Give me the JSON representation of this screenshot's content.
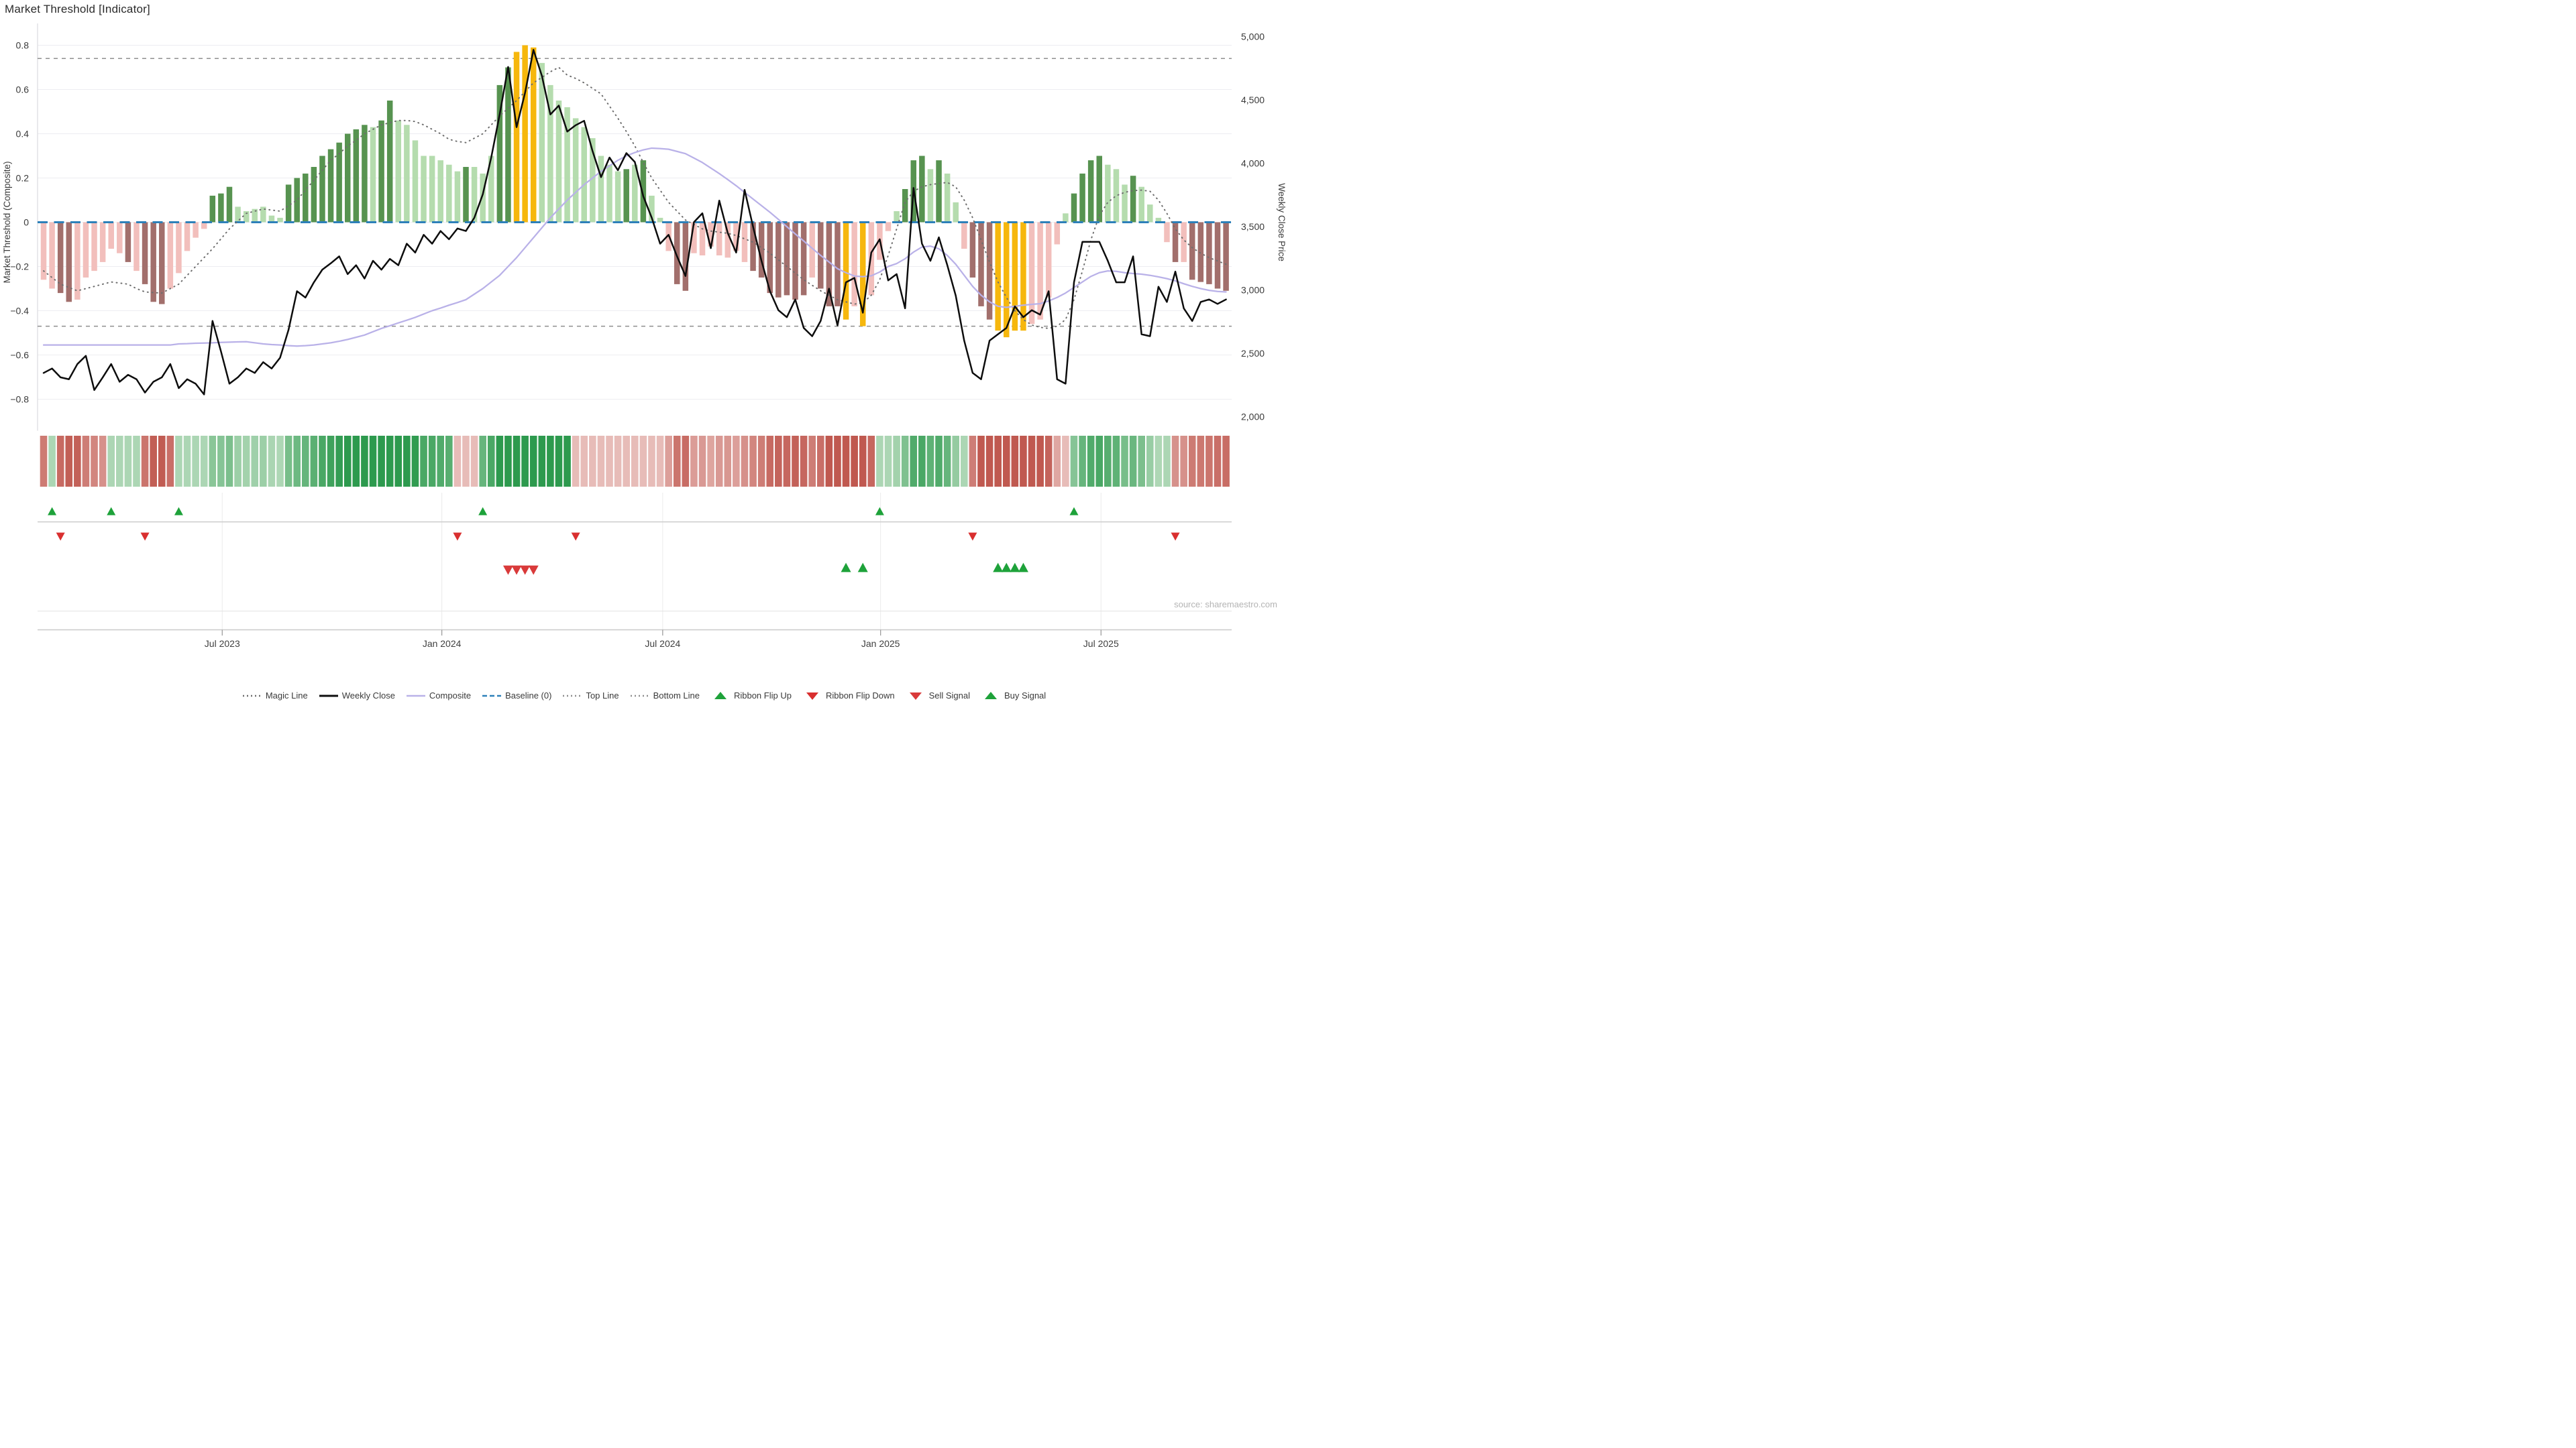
{
  "title": "Market Threshold [Indicator]",
  "source_note": "source: sharemaestro.com",
  "axes": {
    "left": {
      "title": "Market Threshold (Composite)",
      "ticks": [
        0.8,
        0.6,
        0.4,
        0.2,
        0,
        -0.2,
        -0.4,
        -0.6,
        -0.8
      ],
      "tick_labels": [
        "0.8",
        "0.6",
        "0.4",
        "0.2",
        "0",
        "−0.2",
        "−0.4",
        "−0.6",
        "−0.8"
      ]
    },
    "right": {
      "title": "Weekly Close Price",
      "ticks": [
        5000,
        4500,
        4000,
        3500,
        3000,
        2500,
        2000
      ],
      "tick_labels": [
        "5,000",
        "4,500",
        "4,000",
        "3,500",
        "3,000",
        "2,500",
        "2,000"
      ]
    },
    "x": {
      "ticks": [
        {
          "label": "Jul 2023",
          "week": 21.15
        },
        {
          "label": "Jan 2024",
          "week": 47.15
        },
        {
          "label": "Jul 2024",
          "week": 73.3
        },
        {
          "label": "Jan 2025",
          "week": 99.1
        },
        {
          "label": "Jul 2025",
          "week": 125.2
        }
      ]
    }
  },
  "colors": {
    "bar_light_green": "#b5dcae",
    "bar_dark_green": "#579350",
    "bar_yellow": "#f6b70d",
    "bar_light_red": "#f2bfbc",
    "bar_dark_red": "#a26f6c",
    "weekly_close": "#0d0d0d",
    "composite": "#b9b1e8",
    "magic": "#6e6e6e",
    "baseline": "#2d80b9",
    "top_bottom": "#8f8f8f",
    "flip_up": "#1ea23a",
    "flip_down": "#d92f2f",
    "sell": "#d93a3a",
    "buy": "#1ea23a",
    "ribbon_green_dark": "#2d9a4e",
    "ribbon_green_light": "#e2f0df",
    "ribbon_red_dark": "#c05950",
    "ribbon_red_light": "#f8e7e5",
    "grid": "#ededf1",
    "axis_text": "#3a3a3a"
  },
  "legend": [
    {
      "id": "magic-line",
      "label": "Magic Line",
      "marker": "dotted",
      "color": "#6e6e6e"
    },
    {
      "id": "weekly-close",
      "label": "Weekly Close",
      "marker": "solid",
      "color": "#0d0d0d"
    },
    {
      "id": "composite",
      "label": "Composite",
      "marker": "solid",
      "color": "#b9b1e8"
    },
    {
      "id": "baseline",
      "label": "Baseline (0)",
      "marker": "dashed",
      "color": "#2d80b9"
    },
    {
      "id": "top-line",
      "label": "Top Line",
      "marker": "dotted",
      "color": "#8f8f8f"
    },
    {
      "id": "bottom-line",
      "label": "Bottom Line",
      "marker": "dotted",
      "color": "#8f8f8f"
    },
    {
      "id": "ribbon-flip-up",
      "label": "Ribbon Flip Up",
      "marker": "tri-up",
      "color": "#1ea23a"
    },
    {
      "id": "ribbon-flip-down",
      "label": "Ribbon Flip Down",
      "marker": "tri-down",
      "color": "#d92f2f"
    },
    {
      "id": "sell-signal",
      "label": "Sell Signal",
      "marker": "tri-down",
      "color": "#d93a3a"
    },
    {
      "id": "buy-signal",
      "label": "Buy Signal",
      "marker": "tri-up",
      "color": "#1ea23a"
    }
  ],
  "chart_data": {
    "type": "mixed",
    "title": "Market Threshold [Indicator]",
    "x_unit": "week",
    "weeks": 141,
    "ylabel_left": "Market Threshold (Composite)",
    "ylabel_right": "Weekly Close Price",
    "ylim_left": [
      -0.9,
      0.9
    ],
    "ylim_right": [
      2000,
      5000
    ],
    "reference_lines": {
      "baseline": 0,
      "top_line": 0.74,
      "bottom_line": -0.47
    },
    "threshold_bars": {
      "values": [
        -0.26,
        -0.3,
        -0.32,
        -0.36,
        -0.35,
        -0.25,
        -0.22,
        -0.18,
        -0.12,
        -0.14,
        -0.18,
        -0.22,
        -0.28,
        -0.36,
        -0.37,
        -0.3,
        -0.23,
        -0.13,
        -0.07,
        -0.03,
        0.12,
        0.13,
        0.16,
        0.07,
        0.05,
        0.06,
        0.07,
        0.03,
        0.02,
        0.17,
        0.2,
        0.22,
        0.25,
        0.3,
        0.33,
        0.36,
        0.4,
        0.42,
        0.44,
        0.43,
        0.46,
        0.55,
        0.46,
        0.44,
        0.37,
        0.3,
        0.3,
        0.28,
        0.26,
        0.23,
        0.25,
        0.25,
        0.22,
        0.3,
        0.62,
        0.7,
        0.77,
        0.8,
        0.79,
        0.72,
        0.62,
        0.55,
        0.52,
        0.47,
        0.43,
        0.38,
        0.3,
        0.26,
        0.23,
        0.24,
        0.26,
        0.28,
        0.12,
        0.02,
        -0.13,
        -0.28,
        -0.31,
        -0.14,
        -0.15,
        -0.11,
        -0.15,
        -0.16,
        -0.13,
        -0.18,
        -0.22,
        -0.25,
        -0.32,
        -0.34,
        -0.33,
        -0.35,
        -0.33,
        -0.25,
        -0.3,
        -0.38,
        -0.38,
        -0.44,
        -0.38,
        -0.47,
        -0.33,
        -0.17,
        -0.04,
        0.05,
        0.15,
        0.28,
        0.3,
        0.24,
        0.28,
        0.22,
        0.09,
        -0.12,
        -0.25,
        -0.38,
        -0.44,
        -0.49,
        -0.52,
        -0.49,
        -0.49,
        -0.46,
        -0.44,
        -0.34,
        -0.1,
        0.04,
        0.13,
        0.22,
        0.28,
        0.3,
        0.26,
        0.24,
        0.17,
        0.21,
        0.16,
        0.08,
        0.02,
        -0.09,
        -0.18,
        -0.18,
        -0.26,
        -0.27,
        -0.28,
        -0.3,
        -0.31
      ],
      "colors": [
        "lr",
        "lr",
        "dr",
        "dr",
        "lr",
        "lr",
        "lr",
        "lr",
        "lr",
        "lr",
        "dr",
        "lr",
        "dr",
        "dr",
        "dr",
        "lr",
        "lr",
        "lr",
        "lr",
        "lr",
        "dg",
        "dg",
        "dg",
        "lg",
        "lg",
        "lg",
        "lg",
        "lg",
        "lg",
        "dg",
        "dg",
        "dg",
        "dg",
        "dg",
        "dg",
        "dg",
        "dg",
        "dg",
        "dg",
        "lg",
        "dg",
        "dg",
        "lg",
        "lg",
        "lg",
        "lg",
        "lg",
        "lg",
        "lg",
        "lg",
        "dg",
        "lg",
        "lg",
        "lg",
        "dg",
        "dg",
        "y",
        "y",
        "y",
        "lg",
        "lg",
        "lg",
        "lg",
        "lg",
        "lg",
        "lg",
        "lg",
        "lg",
        "lg",
        "dg",
        "lg",
        "dg",
        "lg",
        "lg",
        "lr",
        "dr",
        "dr",
        "lr",
        "lr",
        "lr",
        "lr",
        "lr",
        "lr",
        "lr",
        "dr",
        "dr",
        "dr",
        "dr",
        "dr",
        "dr",
        "dr",
        "lr",
        "dr",
        "dr",
        "dr",
        "y",
        "lr",
        "y",
        "lr",
        "lr",
        "lr",
        "lg",
        "dg",
        "dg",
        "dg",
        "lg",
        "dg",
        "lg",
        "lg",
        "lr",
        "dr",
        "dr",
        "dr",
        "y",
        "y",
        "y",
        "y",
        "lr",
        "lr",
        "lr",
        "lr",
        "lg",
        "dg",
        "dg",
        "dg",
        "dg",
        "lg",
        "lg",
        "lg",
        "dg",
        "lg",
        "lg",
        "lg",
        "lr",
        "dr",
        "lr",
        "dr",
        "dr",
        "dr",
        "dr",
        "dr"
      ]
    },
    "weekly_close": [
      2345,
      2380,
      2310,
      2295,
      2415,
      2480,
      2210,
      2310,
      2415,
      2275,
      2330,
      2295,
      2190,
      2275,
      2310,
      2415,
      2225,
      2295,
      2260,
      2175,
      2755,
      2515,
      2260,
      2310,
      2380,
      2345,
      2430,
      2380,
      2465,
      2685,
      2990,
      2940,
      3060,
      3160,
      3210,
      3265,
      3125,
      3195,
      3090,
      3230,
      3160,
      3245,
      3195,
      3365,
      3295,
      3435,
      3365,
      3465,
      3400,
      3485,
      3465,
      3570,
      3755,
      4045,
      4385,
      4760,
      4285,
      4555,
      4895,
      4690,
      4385,
      4455,
      4250,
      4300,
      4335,
      4095,
      3890,
      4045,
      3945,
      4080,
      4010,
      3740,
      3570,
      3365,
      3435,
      3265,
      3110,
      3535,
      3605,
      3330,
      3705,
      3450,
      3295,
      3790,
      3500,
      3230,
      2990,
      2840,
      2785,
      2925,
      2700,
      2635,
      2755,
      3010,
      2720,
      3060,
      3095,
      2820,
      3295,
      3400,
      3075,
      3125,
      2855,
      3805,
      3365,
      3230,
      3415,
      3195,
      2955,
      2600,
      2345,
      2295,
      2600,
      2650,
      2700,
      2870,
      2785,
      2840,
      2805,
      2990,
      2295,
      2260,
      3060,
      3380,
      3380,
      3380,
      3230,
      3060,
      3060,
      3265,
      2650,
      2635,
      3025,
      2905,
      3145,
      2855,
      2755,
      2905,
      2925,
      2890,
      2925
    ],
    "composite": [
      -0.555,
      -0.555,
      -0.555,
      -0.555,
      -0.555,
      -0.555,
      -0.555,
      -0.555,
      -0.555,
      -0.555,
      -0.555,
      -0.555,
      -0.555,
      -0.555,
      -0.555,
      -0.555,
      -0.55,
      -0.549,
      -0.547,
      -0.546,
      -0.545,
      -0.543,
      -0.542,
      -0.541,
      -0.54,
      -0.545,
      -0.55,
      -0.553,
      -0.555,
      -0.558,
      -0.56,
      -0.558,
      -0.555,
      -0.55,
      -0.545,
      -0.538,
      -0.53,
      -0.52,
      -0.51,
      -0.495,
      -0.48,
      -0.468,
      -0.455,
      -0.443,
      -0.43,
      -0.415,
      -0.4,
      -0.388,
      -0.375,
      -0.363,
      -0.35,
      -0.325,
      -0.3,
      -0.27,
      -0.24,
      -0.2,
      -0.16,
      -0.115,
      -0.07,
      -0.025,
      0.02,
      0.06,
      0.1,
      0.135,
      0.17,
      0.2,
      0.23,
      0.255,
      0.28,
      0.3,
      0.315,
      0.327,
      0.335,
      0.333,
      0.33,
      0.32,
      0.31,
      0.29,
      0.27,
      0.245,
      0.22,
      0.193,
      0.165,
      0.135,
      0.105,
      0.075,
      0.045,
      0.013,
      -0.02,
      -0.053,
      -0.085,
      -0.118,
      -0.15,
      -0.18,
      -0.21,
      -0.228,
      -0.243,
      -0.246,
      -0.242,
      -0.225,
      -0.2,
      -0.187,
      -0.165,
      -0.135,
      -0.112,
      -0.108,
      -0.12,
      -0.15,
      -0.19,
      -0.24,
      -0.29,
      -0.33,
      -0.36,
      -0.38,
      -0.385,
      -0.38,
      -0.375,
      -0.371,
      -0.368,
      -0.356,
      -0.34,
      -0.32,
      -0.295,
      -0.27,
      -0.245,
      -0.228,
      -0.22,
      -0.222,
      -0.228,
      -0.232,
      -0.235,
      -0.24,
      -0.247,
      -0.255,
      -0.265,
      -0.278,
      -0.29,
      -0.3,
      -0.308,
      -0.313,
      -0.315
    ],
    "magic_line": [
      -0.22,
      -0.25,
      -0.28,
      -0.295,
      -0.31,
      -0.3,
      -0.29,
      -0.28,
      -0.27,
      -0.275,
      -0.28,
      -0.3,
      -0.315,
      -0.318,
      -0.32,
      -0.3,
      -0.28,
      -0.24,
      -0.2,
      -0.16,
      -0.12,
      -0.075,
      -0.03,
      0.005,
      0.04,
      0.05,
      0.06,
      0.055,
      0.05,
      0.075,
      0.1,
      0.145,
      0.19,
      0.235,
      0.28,
      0.31,
      0.345,
      0.37,
      0.4,
      0.42,
      0.44,
      0.45,
      0.46,
      0.46,
      0.455,
      0.44,
      0.42,
      0.4,
      0.375,
      0.365,
      0.36,
      0.38,
      0.4,
      0.44,
      0.48,
      0.515,
      0.55,
      0.59,
      0.63,
      0.655,
      0.68,
      0.7,
      0.665,
      0.65,
      0.63,
      0.605,
      0.58,
      0.525,
      0.47,
      0.41,
      0.345,
      0.27,
      0.2,
      0.145,
      0.09,
      0.05,
      0.01,
      -0.01,
      -0.03,
      -0.04,
      -0.045,
      -0.05,
      -0.06,
      -0.075,
      -0.09,
      -0.115,
      -0.14,
      -0.17,
      -0.2,
      -0.23,
      -0.26,
      -0.285,
      -0.31,
      -0.33,
      -0.35,
      -0.36,
      -0.37,
      -0.365,
      -0.33,
      -0.26,
      -0.15,
      -0.03,
      0.09,
      0.14,
      0.16,
      0.17,
      0.175,
      0.18,
      0.16,
      0.1,
      0.02,
      -0.08,
      -0.18,
      -0.27,
      -0.34,
      -0.4,
      -0.44,
      -0.465,
      -0.475,
      -0.48,
      -0.47,
      -0.44,
      -0.35,
      -0.22,
      -0.08,
      0.03,
      0.09,
      0.12,
      0.135,
      0.143,
      0.145,
      0.14,
      0.1,
      0.04,
      -0.03,
      -0.08,
      -0.115,
      -0.14,
      -0.16,
      -0.175,
      -0.19
    ],
    "ribbon": {
      "start_sign": -1,
      "flip_up_weeks": [
        1,
        8,
        16,
        52,
        99,
        122
      ],
      "flip_down_weeks": [
        2,
        12,
        49,
        63,
        110,
        134
      ]
    },
    "signals": {
      "sell_weeks": [
        55,
        56,
        57,
        58
      ],
      "buy_weeks": [
        95,
        97,
        113,
        114,
        115,
        116
      ]
    }
  }
}
